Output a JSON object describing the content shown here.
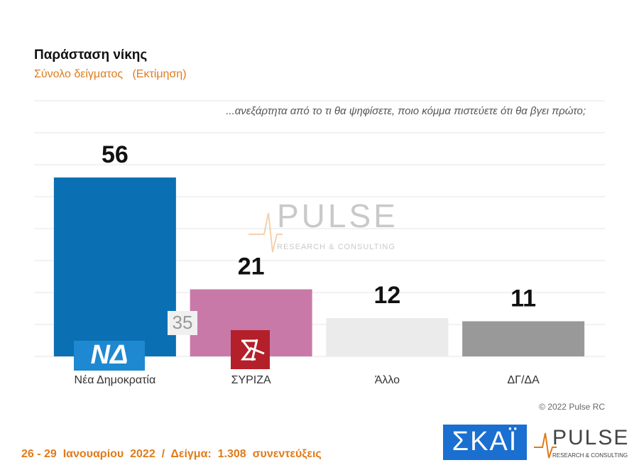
{
  "chart_data": {
    "type": "bar",
    "title": "Παράσταση νίκης",
    "subtitle": "Σύνολο δείγματος   (Εκτίμηση)",
    "question": "...ανεξάρτητα από το τι θα ψηφίσετε, ποιο κόμμα πιστεύετε ότι θα βγει πρώτο;",
    "categories": [
      "Νέα Δημοκρατία",
      "ΣΥΡΙΖΑ",
      "Άλλο",
      "ΔΓ/ΔΑ"
    ],
    "values": [
      56,
      21,
      12,
      11
    ],
    "colors": [
      "#0a70b3",
      "#c979a8",
      "#ebebeb",
      "#999999"
    ],
    "ylim": [
      0,
      80
    ],
    "yticks": [
      0,
      10,
      20,
      30,
      40,
      50,
      60,
      70,
      80
    ],
    "tick_labels": false,
    "grid": true,
    "difference_label": "35",
    "watermark": "PULSE",
    "watermark_sub": "RESEARCH & CONSULTING",
    "logo_nd": "ΝΔ",
    "copyright": "© 2022 Pulse RC",
    "footer": "26 - 29  Ιανουαρίου  2022  /  Δείγμα:  1.308  συνεντεύξεις",
    "logo_skai": "ΣΚΑΪ",
    "logo_pulse": "PULSE",
    "logo_pulse_sub": "RESEARCH & CONSULTING"
  }
}
